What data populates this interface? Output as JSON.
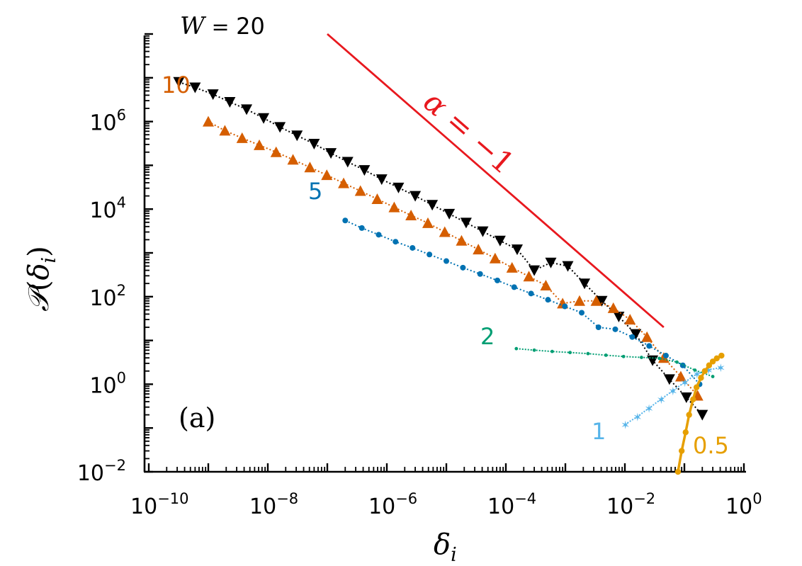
{
  "chart_data": {
    "type": "line",
    "xscale": "log",
    "yscale": "log",
    "xlim": [
      1e-10,
      1
    ],
    "ylim": [
      0.01,
      100000000.0
    ],
    "xlabel": "δ_i",
    "ylabel": "P(δ_i)",
    "grid": false,
    "panel_label": "(a)",
    "x_ticks": [
      {
        "base": "10",
        "exp": "−10",
        "value": 1e-10
      },
      {
        "base": "10",
        "exp": "−8",
        "value": 1e-08
      },
      {
        "base": "10",
        "exp": "−6",
        "value": 1e-06
      },
      {
        "base": "10",
        "exp": "−4",
        "value": 0.0001
      },
      {
        "base": "10",
        "exp": "−2",
        "value": 0.01
      },
      {
        "base": "10",
        "exp": "0",
        "value": 1
      }
    ],
    "y_ticks": [
      {
        "base": "10",
        "exp": "−2",
        "value": 0.01
      },
      {
        "base": "10",
        "exp": "0",
        "value": 1
      },
      {
        "base": "10",
        "exp": "2",
        "value": 100.0
      },
      {
        "base": "10",
        "exp": "4",
        "value": 10000.0
      },
      {
        "base": "10",
        "exp": "6",
        "value": 1000000.0
      }
    ],
    "reference_line": {
      "label_var": "α",
      "label_rest": " = −1",
      "slope": -1,
      "color": "#e8181e",
      "x": [
        1e-07,
        0.045
      ],
      "y": [
        100000000.0,
        20
      ]
    },
    "series": [
      {
        "name": "W = 20",
        "label_prefix": "W",
        "label_eq": " = ",
        "label_value": "20",
        "color": "#000000",
        "marker": "triangle-down",
        "x": [
          3.2e-10,
          6e-10,
          1.2e-09,
          2.3e-09,
          4.4e-09,
          8.5e-09,
          1.6e-08,
          3.1e-08,
          6e-08,
          1.15e-07,
          2.2e-07,
          4.2e-07,
          8.2e-07,
          1.57e-06,
          3e-06,
          5.8e-06,
          1.12e-05,
          2.15e-05,
          4.1e-05,
          8e-05,
          0.000155,
          0.0003,
          0.00057,
          0.0011,
          0.0021,
          0.0041,
          0.0079,
          0.0152,
          0.0292,
          0.056,
          0.108,
          0.2
        ],
        "y": [
          8000000.0,
          6000000.0,
          4200000.0,
          2800000.0,
          1900000.0,
          1200000.0,
          750000.0,
          480000.0,
          310000.0,
          190000.0,
          120000.0,
          78000.0,
          48000.0,
          31000.0,
          20000.0,
          12500.0,
          7800.0,
          4900.0,
          3100.0,
          1900.0,
          1200.0,
          400,
          600,
          500,
          200,
          80,
          35,
          14,
          3.5,
          1.3,
          0.5,
          0.2
        ]
      },
      {
        "name": "10",
        "label_value": "10",
        "color": "#d55e00",
        "marker": "triangle-up",
        "x": [
          1e-09,
          1.9e-09,
          3.7e-09,
          7.2e-09,
          1.38e-08,
          2.65e-08,
          5.1e-08,
          9.8e-08,
          1.88e-07,
          3.6e-07,
          6.9e-07,
          1.33e-06,
          2.55e-06,
          4.9e-06,
          9.4e-06,
          1.8e-05,
          3.45e-05,
          6.6e-05,
          0.000127,
          0.000244,
          0.00047,
          0.0009,
          0.00173,
          0.0033,
          0.0064,
          0.0122,
          0.0235,
          0.045,
          0.087,
          0.167
        ],
        "y": [
          1000000.0,
          620000.0,
          420000.0,
          290000.0,
          200000.0,
          135000.0,
          90000.0,
          60000.0,
          39000.0,
          26000.0,
          17000.0,
          11000.0,
          7200.0,
          4800.0,
          3000.0,
          1900.0,
          1200.0,
          750,
          460,
          290,
          180,
          70,
          80,
          80,
          55,
          30,
          12,
          4,
          1.5,
          0.55
        ]
      },
      {
        "name": "5",
        "label_value": "5",
        "color": "#0072b2",
        "marker": "circle",
        "x": [
          2e-07,
          3.8e-07,
          7.3e-07,
          1.4e-06,
          2.7e-06,
          5.2e-06,
          1e-05,
          1.9e-05,
          3.7e-05,
          7.2e-05,
          0.000138,
          0.000265,
          0.00051,
          0.00098,
          0.00188,
          0.0036,
          0.0069,
          0.0133,
          0.0256,
          0.049,
          0.094,
          0.18
        ],
        "y": [
          5500.0,
          3700.0,
          2600.0,
          1800.0,
          1300.0,
          920,
          650,
          460,
          330,
          235,
          165,
          118,
          85,
          60,
          43,
          20,
          18,
          12,
          7.5,
          4.5,
          2.7,
          1
        ]
      },
      {
        "name": "2",
        "label_value": "2",
        "color": "#009e73",
        "marker": "small-dot",
        "x": [
          0.00015,
          0.0003,
          0.0006,
          0.0012,
          0.0024,
          0.0048,
          0.0095,
          0.019,
          0.038,
          0.075,
          0.15,
          0.3
        ],
        "y": [
          6.5,
          6,
          5.6,
          5.3,
          5,
          4.6,
          4.3,
          4.1,
          3.9,
          3.2,
          2.1,
          1.5
        ]
      },
      {
        "name": "1",
        "label_value": "1",
        "color": "#56b4e9",
        "marker": "star",
        "x": [
          0.01,
          0.016,
          0.025,
          0.04,
          0.063,
          0.1,
          0.16,
          0.25,
          0.4
        ],
        "y": [
          0.12,
          0.18,
          0.28,
          0.45,
          0.7,
          1.1,
          1.7,
          2.1,
          2.4
        ]
      },
      {
        "name": "0.5",
        "label_value": "0.5",
        "color": "#e69f00",
        "marker": "dense-dot",
        "x": [
          0.078,
          0.09,
          0.105,
          0.12,
          0.14,
          0.16,
          0.19,
          0.22,
          0.26,
          0.3,
          0.35,
          0.42
        ],
        "y": [
          0.01,
          0.03,
          0.08,
          0.2,
          0.45,
          0.85,
          1.4,
          2,
          2.7,
          3.3,
          3.9,
          4.5
        ]
      }
    ]
  }
}
